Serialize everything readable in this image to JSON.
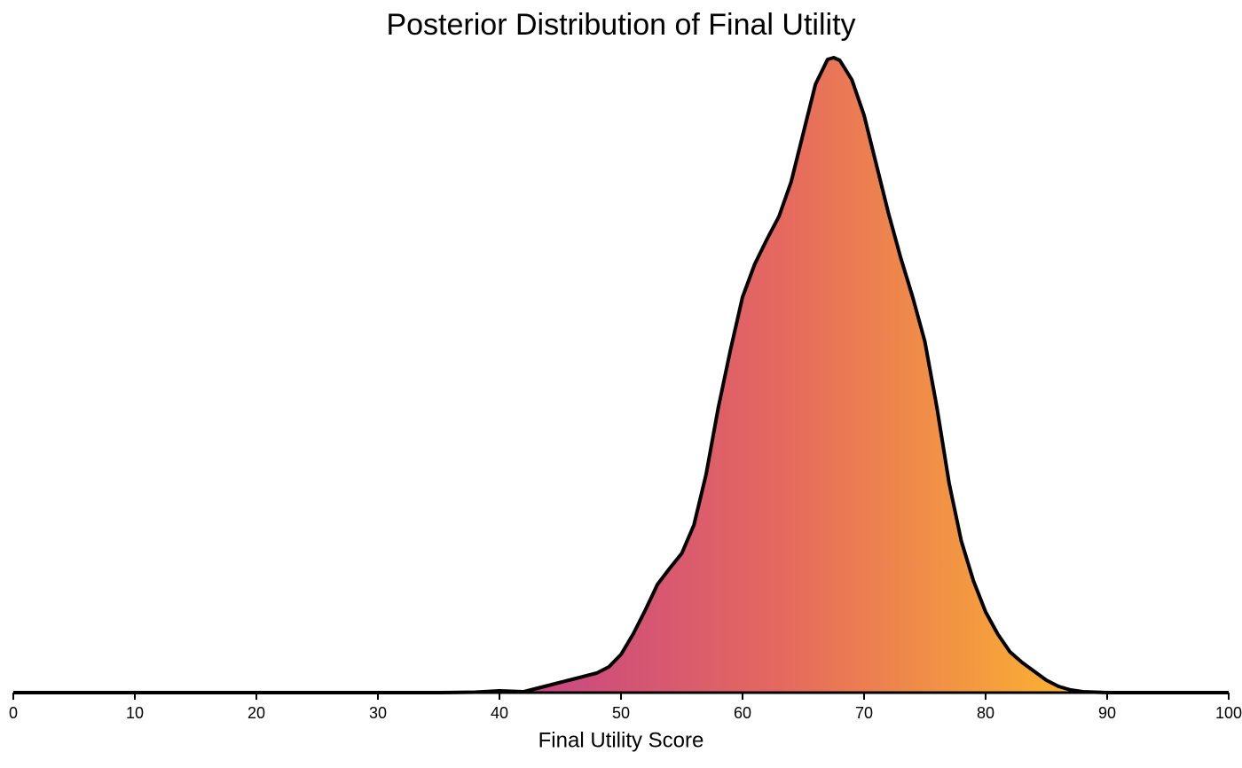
{
  "chart_data": {
    "type": "area",
    "title": "Posterior Distribution of Final Utility",
    "x_label": "Final Utility Score",
    "x": [
      0,
      35,
      38,
      40,
      42,
      44,
      46,
      48,
      49,
      50,
      51,
      52,
      53,
      54,
      55,
      56,
      57,
      58,
      59,
      60,
      61,
      62,
      63,
      64,
      65,
      66,
      67,
      67.5,
      68,
      69,
      70,
      71,
      72,
      73,
      74,
      75,
      76,
      77,
      78,
      79,
      80,
      81,
      82,
      83,
      84,
      85,
      86,
      87,
      88,
      90,
      100
    ],
    "values": [
      0,
      0,
      4e-05,
      0.00016,
      8e-05,
      0.00064,
      0.0012,
      0.00176,
      0.00232,
      0.00344,
      0.00528,
      0.00744,
      0.00976,
      0.0112,
      0.01256,
      0.01512,
      0.01968,
      0.02568,
      0.03088,
      0.03568,
      0.03864,
      0.04088,
      0.04296,
      0.04608,
      0.05048,
      0.05488,
      0.05712,
      0.05728,
      0.05704,
      0.05528,
      0.05208,
      0.04768,
      0.04328,
      0.03928,
      0.03568,
      0.03168,
      0.02568,
      0.01888,
      0.01368,
      0.01008,
      0.00728,
      0.00528,
      0.00368,
      0.00272,
      0.00192,
      0.00112,
      0.00056,
      0.00024,
      8e-05,
      0,
      0
    ],
    "xlim": [
      0,
      100
    ],
    "xticks": [
      0,
      10,
      20,
      30,
      40,
      50,
      60,
      70,
      80,
      90,
      100
    ],
    "ylim": [
      0,
      0.058
    ],
    "line_color": "#000000",
    "gradient": [
      "#c13f8b",
      "#e5685f",
      "#fcb52f"
    ]
  }
}
